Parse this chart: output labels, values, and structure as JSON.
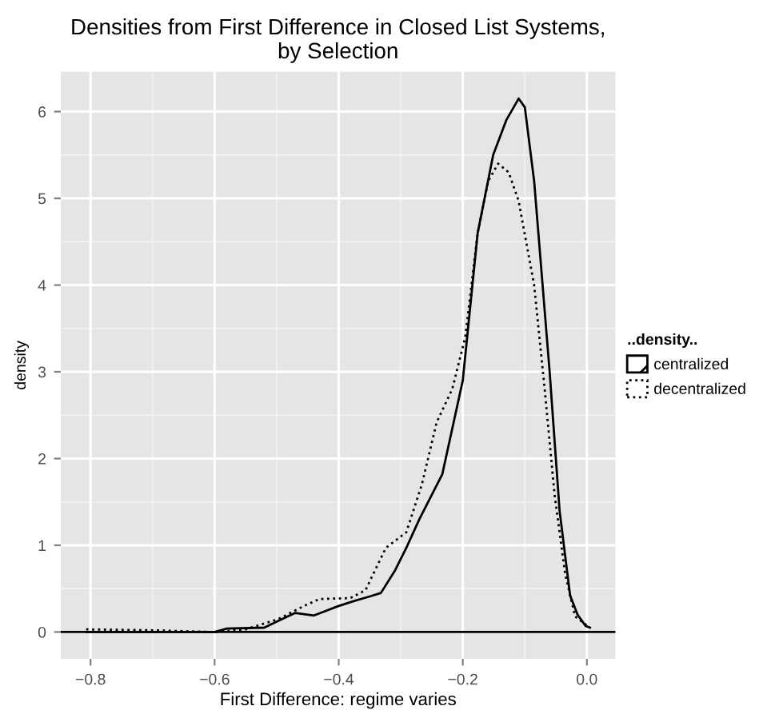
{
  "chart_data": {
    "type": "line",
    "title": "Densities from First Difference in Closed List Systems,\nby Selection",
    "xlabel": "First Difference: regime varies",
    "ylabel": "density",
    "legend_title": "..density..",
    "series": [
      {
        "name": "centralized",
        "color": "#000000",
        "line_style": "solid",
        "x": [
          -0.807,
          -0.6,
          -0.58,
          -0.52,
          -0.5,
          -0.47,
          -0.44,
          -0.4,
          -0.374,
          -0.35,
          -0.332,
          -0.31,
          -0.291,
          -0.27,
          -0.233,
          -0.2,
          -0.176,
          -0.151,
          -0.13,
          -0.11,
          -0.1,
          -0.085,
          -0.06,
          -0.044,
          -0.027,
          -0.015,
          -0.002,
          0.005
        ],
        "values": [
          0,
          0,
          0.04,
          0.05,
          0.12,
          0.22,
          0.19,
          0.3,
          0.36,
          0.41,
          0.45,
          0.7,
          0.97,
          1.3,
          1.82,
          2.9,
          4.6,
          5.5,
          5.9,
          6.15,
          6.05,
          5.2,
          3.0,
          1.4,
          0.42,
          0.2,
          0.07,
          0.05
        ]
      },
      {
        "name": "decentralized",
        "color": "#000000",
        "line_style": "dotted",
        "x": [
          -0.807,
          -0.7,
          -0.6,
          -0.55,
          -0.497,
          -0.456,
          -0.431,
          -0.382,
          -0.357,
          -0.324,
          -0.291,
          -0.266,
          -0.242,
          -0.217,
          -0.196,
          -0.176,
          -0.159,
          -0.143,
          -0.126,
          -0.11,
          -0.085,
          -0.068,
          -0.052,
          -0.035,
          -0.019,
          0.005
        ],
        "values": [
          0.03,
          0.02,
          0.0,
          0.03,
          0.15,
          0.3,
          0.38,
          0.39,
          0.48,
          0.97,
          1.15,
          1.7,
          2.42,
          2.8,
          3.4,
          4.6,
          5.2,
          5.4,
          5.3,
          4.97,
          4.0,
          2.8,
          1.58,
          0.67,
          0.18,
          0.05
        ]
      }
    ],
    "ref_lines": [
      {
        "axis": "y",
        "value": 0,
        "color": "#000000",
        "line_style": "solid"
      }
    ],
    "xlim": [
      -0.848,
      0.046
    ],
    "ylim": [
      -0.31,
      6.46
    ],
    "xticks": [
      {
        "value": -0.8,
        "label": "−0.8"
      },
      {
        "value": -0.6,
        "label": "−0.6"
      },
      {
        "value": -0.4,
        "label": "−0.4"
      },
      {
        "value": -0.2,
        "label": "−0.2"
      },
      {
        "value": 0.0,
        "label": "0.0"
      }
    ],
    "yticks": [
      0,
      1,
      2,
      3,
      4,
      5,
      6
    ],
    "grid": true,
    "legend": "right",
    "marker": "none"
  }
}
